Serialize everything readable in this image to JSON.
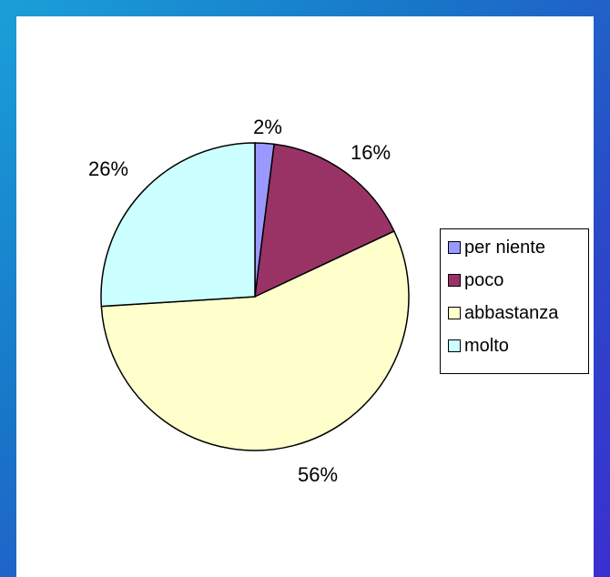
{
  "chart_data": {
    "type": "pie",
    "title": "",
    "slices": [
      {
        "label": "per niente",
        "value": 2,
        "data_label": "2%",
        "color": "#9999ff"
      },
      {
        "label": "poco",
        "value": 16,
        "data_label": "16%",
        "color": "#993366"
      },
      {
        "label": "abbastanza",
        "value": 56,
        "data_label": "56%",
        "color": "#ffffcc"
      },
      {
        "label": "molto",
        "value": 26,
        "data_label": "26%",
        "color": "#ccffff"
      }
    ],
    "legend_position": "right"
  },
  "frame": {
    "accent": "#1a5fd0"
  }
}
